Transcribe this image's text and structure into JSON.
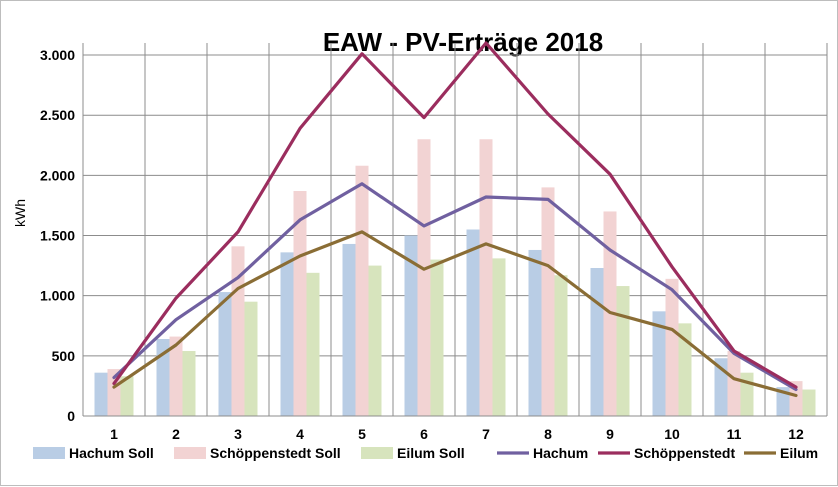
{
  "chart_data": {
    "type": "bar",
    "title": "EAW - PV-Erträge 2018",
    "xlabel": "",
    "ylabel": "kWh",
    "ylim": [
      0,
      3100
    ],
    "yticks": [
      0,
      500,
      1000,
      1500,
      2000,
      2500,
      3000
    ],
    "ytick_labels": [
      "0",
      "500",
      "1.000",
      "1.500",
      "2.000",
      "2.500",
      "3.000"
    ],
    "categories": [
      "1",
      "2",
      "3",
      "4",
      "5",
      "6",
      "7",
      "8",
      "9",
      "10",
      "11",
      "12"
    ],
    "grid": true,
    "legend_position": "bottom",
    "series": [
      {
        "name": "Hachum Soll",
        "kind": "bar",
        "color": "#b9cde5",
        "values": [
          360,
          640,
          1030,
          1360,
          1430,
          1500,
          1550,
          1380,
          1230,
          870,
          480,
          240
        ]
      },
      {
        "name": "Schöppenstedt Soll",
        "kind": "bar",
        "color": "#f2d3d3",
        "values": [
          390,
          660,
          1410,
          1870,
          2080,
          2300,
          2300,
          1900,
          1700,
          1140,
          540,
          290
        ]
      },
      {
        "name": "Eilum Soll",
        "kind": "bar",
        "color": "#d7e4bd",
        "values": [
          330,
          540,
          950,
          1190,
          1250,
          1300,
          1310,
          1170,
          1080,
          770,
          360,
          220
        ]
      },
      {
        "name": "Hachum",
        "kind": "line",
        "color": "#7060a0",
        "values": [
          320,
          800,
          1150,
          1630,
          1930,
          1580,
          1820,
          1800,
          1380,
          1050,
          520,
          220
        ]
      },
      {
        "name": "Schöppenstedt",
        "kind": "line",
        "color": "#9b2d5e",
        "values": [
          270,
          980,
          1530,
          2390,
          3010,
          2480,
          3100,
          2510,
          2010,
          1240,
          540,
          240
        ]
      },
      {
        "name": "Eilum",
        "kind": "line",
        "color": "#8a6d35",
        "values": [
          240,
          590,
          1060,
          1330,
          1530,
          1220,
          1430,
          1250,
          860,
          720,
          310,
          170
        ]
      }
    ]
  }
}
